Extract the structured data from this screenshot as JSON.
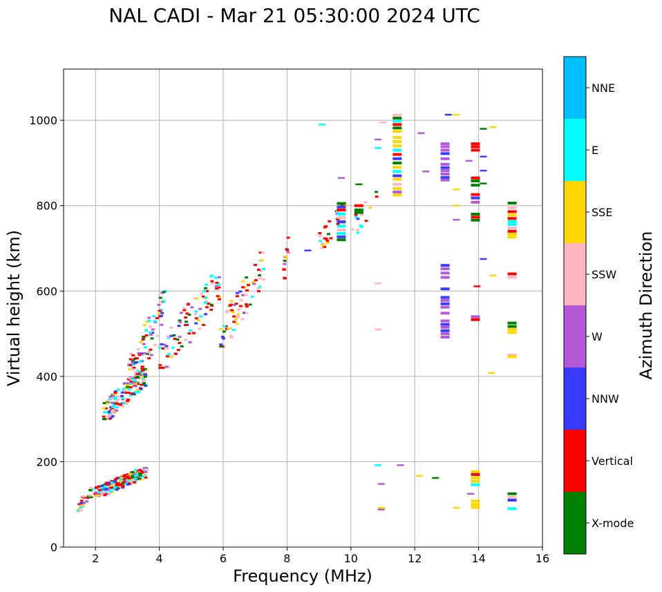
{
  "chart_data": {
    "type": "scatter",
    "title": "NAL CADI - Mar 21 05:30:00 2024 UTC",
    "xlabel": "Frequency (MHz)",
    "ylabel": "Virtual height (km)",
    "xlim": [
      1,
      16
    ],
    "ylim": [
      0,
      1120
    ],
    "grid": true,
    "xticks": [
      2,
      4,
      6,
      8,
      10,
      12,
      14,
      16
    ],
    "yticks": [
      0,
      200,
      400,
      600,
      800,
      1000
    ],
    "colorbar": {
      "label": "Azimuth Direction",
      "categories": [
        "X-mode",
        "Vertical",
        "NNW",
        "W",
        "SSW",
        "SSE",
        "E",
        "NNE"
      ],
      "colors": [
        "#008000",
        "#ff0000",
        "#3a3aff",
        "#b45ad8",
        "#ffb6c1",
        "#ffd700",
        "#00ffff",
        "#00bfff"
      ]
    },
    "clusters": [
      {
        "x": [
          1.45,
          2.0
        ],
        "y": [
          85,
          145
        ],
        "n": 30,
        "seed": 11
      },
      {
        "x": [
          2.0,
          3.6
        ],
        "y": [
          120,
          185
        ],
        "n": 200,
        "seed": 12
      },
      {
        "x": [
          2.25,
          3.6
        ],
        "y": [
          300,
          420
        ],
        "n": 150,
        "seed": 13
      },
      {
        "x": [
          3.0,
          4.2
        ],
        "y": [
          360,
          600
        ],
        "n": 90,
        "seed": 14
      },
      {
        "x": [
          4.0,
          5.9
        ],
        "y": [
          420,
          640
        ],
        "n": 90,
        "seed": 15
      },
      {
        "x": [
          5.9,
          7.3
        ],
        "y": [
          470,
          690
        ],
        "n": 70,
        "seed": 16
      },
      {
        "x": [
          7.9,
          8.1
        ],
        "y": [
          620,
          760
        ],
        "n": 16,
        "seed": 17
      },
      {
        "x": [
          9.0,
          9.9
        ],
        "y": [
          700,
          810
        ],
        "n": 30,
        "seed": 18
      },
      {
        "x": [
          10.0,
          10.9
        ],
        "y": [
          730,
          840
        ],
        "n": 14,
        "seed": 19
      }
    ],
    "points": [
      {
        "x": 8.65,
        "y": 695,
        "c": 2
      },
      {
        "x": 9.1,
        "y": 990,
        "c": 6
      },
      {
        "x": 9.7,
        "y": 865,
        "c": 3
      },
      {
        "x": 10.25,
        "y": 850,
        "c": 0
      },
      {
        "x": 10.85,
        "y": 935,
        "c": 6
      },
      {
        "x": 10.85,
        "y": 955,
        "c": 3
      },
      {
        "x": 11.0,
        "y": 995,
        "c": 4
      },
      {
        "x": 10.85,
        "y": 618,
        "c": 4
      },
      {
        "x": 10.85,
        "y": 510,
        "c": 4
      },
      {
        "x": 10.85,
        "y": 192,
        "c": 6
      },
      {
        "x": 10.95,
        "y": 148,
        "c": 3
      },
      {
        "x": 10.95,
        "y": 92,
        "c": 5
      },
      {
        "x": 10.95,
        "y": 88,
        "c": 3
      },
      {
        "x": 11.55,
        "y": 192,
        "c": 3
      },
      {
        "x": 12.2,
        "y": 970,
        "c": 3
      },
      {
        "x": 12.35,
        "y": 880,
        "c": 3
      },
      {
        "x": 12.15,
        "y": 167,
        "c": 5
      },
      {
        "x": 12.65,
        "y": 162,
        "c": 0
      },
      {
        "x": 13.05,
        "y": 1013,
        "c": 2
      },
      {
        "x": 13.3,
        "y": 1013,
        "c": 5
      },
      {
        "x": 13.3,
        "y": 838,
        "c": 5
      },
      {
        "x": 13.3,
        "y": 800,
        "c": 5
      },
      {
        "x": 13.3,
        "y": 767,
        "c": 3
      },
      {
        "x": 13.3,
        "y": 92,
        "c": 5
      },
      {
        "x": 13.7,
        "y": 905,
        "c": 3
      },
      {
        "x": 13.75,
        "y": 125,
        "c": 3
      },
      {
        "x": 14.15,
        "y": 980,
        "c": 0
      },
      {
        "x": 14.45,
        "y": 984,
        "c": 5
      },
      {
        "x": 14.15,
        "y": 915,
        "c": 2
      },
      {
        "x": 14.15,
        "y": 882,
        "c": 2
      },
      {
        "x": 14.15,
        "y": 852,
        "c": 0
      },
      {
        "x": 14.15,
        "y": 675,
        "c": 2
      },
      {
        "x": 14.45,
        "y": 636,
        "c": 5
      },
      {
        "x": 14.4,
        "y": 408,
        "c": 5
      },
      {
        "x": 13.95,
        "y": 611,
        "c": 1
      }
    ],
    "columns": [
      {
        "x": 11.45,
        "cells": [
          [
            1012,
            4
          ],
          [
            1005,
            0
          ],
          [
            998,
            6
          ],
          [
            990,
            1
          ],
          [
            982,
            0
          ],
          [
            974,
            5
          ],
          [
            960,
            5
          ],
          [
            950,
            5
          ],
          [
            940,
            5
          ],
          [
            930,
            6
          ],
          [
            920,
            1
          ],
          [
            910,
            2
          ],
          [
            900,
            0
          ],
          [
            890,
            5
          ],
          [
            880,
            6
          ],
          [
            870,
            2
          ],
          [
            862,
            5
          ],
          [
            850,
            4
          ],
          [
            840,
            5
          ],
          [
            832,
            3
          ],
          [
            825,
            5
          ]
        ]
      },
      {
        "x": 12.95,
        "cells": [
          [
            945,
            3
          ],
          [
            938,
            3
          ],
          [
            930,
            3
          ],
          [
            922,
            2
          ],
          [
            910,
            3
          ],
          [
            897,
            3
          ],
          [
            889,
            2
          ],
          [
            882,
            3
          ],
          [
            874,
            3
          ],
          [
            866,
            2
          ],
          [
            860,
            3
          ],
          [
            660,
            2
          ],
          [
            652,
            3
          ],
          [
            642,
            3
          ],
          [
            632,
            3
          ],
          [
            605,
            2
          ],
          [
            585,
            2
          ],
          [
            578,
            3
          ],
          [
            570,
            2
          ],
          [
            562,
            3
          ],
          [
            548,
            3
          ],
          [
            530,
            3
          ],
          [
            522,
            2
          ],
          [
            515,
            3
          ],
          [
            507,
            2
          ],
          [
            500,
            3
          ],
          [
            492,
            3
          ]
        ]
      },
      {
        "x": 13.9,
        "cells": [
          [
            945,
            1
          ],
          [
            938,
            1
          ],
          [
            930,
            1
          ],
          [
            865,
            1
          ],
          [
            858,
            0
          ],
          [
            848,
            0
          ],
          [
            826,
            1
          ],
          [
            818,
            2
          ],
          [
            808,
            3
          ],
          [
            780,
            0
          ],
          [
            773,
            1
          ],
          [
            766,
            0
          ],
          [
            540,
            3
          ],
          [
            533,
            1
          ],
          [
            177,
            5
          ],
          [
            170,
            1
          ],
          [
            162,
            5
          ],
          [
            154,
            5
          ],
          [
            146,
            6
          ],
          [
            108,
            5
          ],
          [
            100,
            5
          ],
          [
            93,
            5
          ]
        ]
      },
      {
        "x": 15.05,
        "cells": [
          [
            806,
            0
          ],
          [
            795,
            4
          ],
          [
            786,
            1
          ],
          [
            778,
            5
          ],
          [
            770,
            1
          ],
          [
            763,
            6
          ],
          [
            756,
            6
          ],
          [
            748,
            4
          ],
          [
            740,
            1
          ],
          [
            733,
            5
          ],
          [
            726,
            5
          ],
          [
            640,
            1
          ],
          [
            632,
            4
          ],
          [
            525,
            0
          ],
          [
            517,
            0
          ],
          [
            510,
            5
          ],
          [
            503,
            5
          ],
          [
            450,
            4
          ],
          [
            446,
            5
          ],
          [
            125,
            0
          ],
          [
            117,
            4
          ],
          [
            110,
            2
          ],
          [
            90,
            6
          ]
        ]
      },
      {
        "x": 10.25,
        "cells": [
          [
            800,
            1
          ],
          [
            790,
            0
          ],
          [
            784,
            0
          ]
        ]
      },
      {
        "x": 9.7,
        "cells": [
          [
            805,
            0
          ],
          [
            797,
            2
          ],
          [
            790,
            1
          ],
          [
            780,
            6
          ],
          [
            772,
            4
          ],
          [
            762,
            2
          ],
          [
            752,
            6
          ],
          [
            743,
            4
          ],
          [
            735,
            6
          ],
          [
            727,
            2
          ],
          [
            720,
            0
          ]
        ]
      }
    ]
  }
}
